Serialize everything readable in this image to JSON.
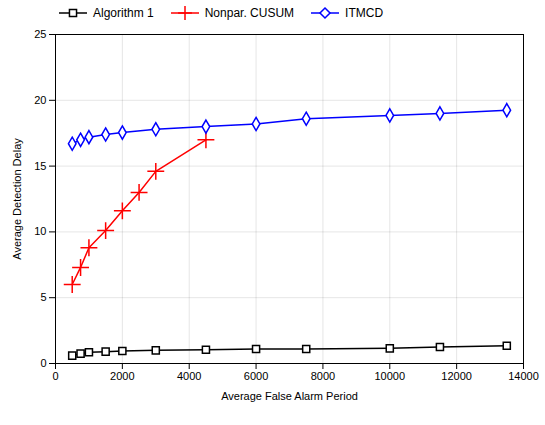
{
  "chart_data": {
    "type": "line",
    "xlabel": "Average False Alarm Period",
    "ylabel": "Average Detection Delay",
    "xlim": [
      0,
      14000
    ],
    "ylim": [
      0,
      25
    ],
    "xticks": [
      0,
      2000,
      4000,
      6000,
      8000,
      10000,
      12000,
      14000
    ],
    "yticks": [
      0,
      5,
      10,
      15,
      20,
      25
    ],
    "grid": true,
    "legend": "upper left",
    "series": [
      {
        "name": "Algorithm 1",
        "color": "#000000",
        "marker": "square",
        "x": [
          500,
          750,
          1000,
          1500,
          2000,
          3000,
          4500,
          6000,
          7500,
          10000,
          11500,
          13500
        ],
        "values": [
          0.6,
          0.75,
          0.85,
          0.9,
          0.95,
          1.0,
          1.05,
          1.1,
          1.1,
          1.15,
          1.25,
          1.35
        ]
      },
      {
        "name": "Nonpar. CUSUM",
        "color": "#ff0000",
        "marker": "plus",
        "x": [
          500,
          750,
          1000,
          1500,
          2000,
          2500,
          3000,
          4500
        ],
        "values": [
          6.0,
          7.3,
          8.8,
          10.1,
          11.6,
          13.0,
          14.6,
          17.0
        ]
      },
      {
        "name": "ITMCD",
        "color": "#0000ff",
        "marker": "diamond",
        "x": [
          500,
          750,
          1000,
          1500,
          2000,
          3000,
          4500,
          6000,
          7500,
          10000,
          11500,
          13500
        ],
        "values": [
          16.7,
          17.0,
          17.2,
          17.4,
          17.55,
          17.8,
          18.0,
          18.2,
          18.6,
          18.85,
          19.0,
          19.25
        ]
      }
    ]
  }
}
